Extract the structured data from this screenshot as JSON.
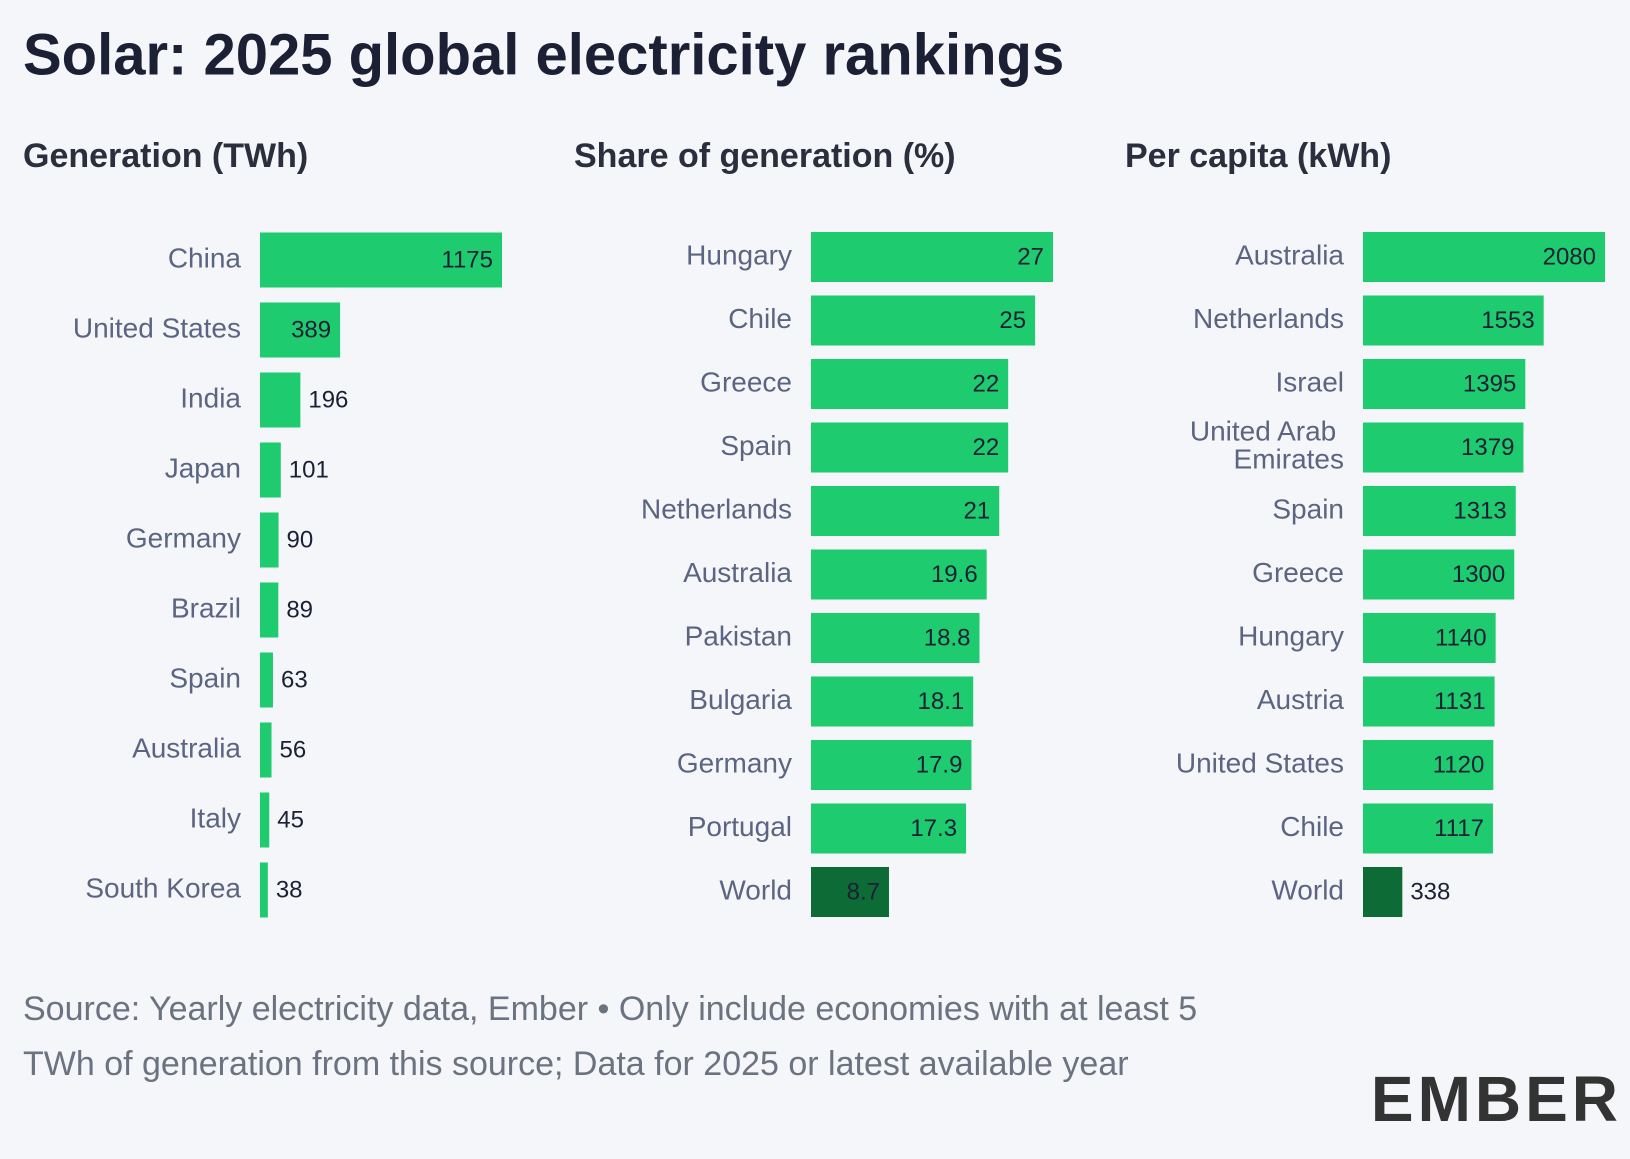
{
  "title": "Solar: 2025 global electricity rankings",
  "source": "Source: Yearly electricity data, Ember • Only include economies with at least 5 TWh of generation from this source; Data for 2025 or latest available year",
  "logo": "EMBER",
  "chart_data": [
    {
      "type": "bar",
      "orientation": "horizontal",
      "title": "Generation (TWh)",
      "categories": [
        "China",
        "United States",
        "India",
        "Japan",
        "Germany",
        "Brazil",
        "Spain",
        "Australia",
        "Italy",
        "South Korea"
      ],
      "values": [
        1175,
        389,
        196,
        101,
        90,
        89,
        63,
        56,
        45,
        38
      ],
      "colors": [
        "#1ecb6e",
        "#1ecb6e",
        "#1ecb6e",
        "#1ecb6e",
        "#1ecb6e",
        "#1ecb6e",
        "#1ecb6e",
        "#1ecb6e",
        "#1ecb6e",
        "#1ecb6e"
      ]
    },
    {
      "type": "bar",
      "orientation": "horizontal",
      "title": "Share of generation (%)",
      "categories": [
        "Hungary",
        "Chile",
        "Greece",
        "Spain",
        "Netherlands",
        "Australia",
        "Pakistan",
        "Bulgaria",
        "Germany",
        "Portugal",
        "World"
      ],
      "values": [
        27,
        25,
        22,
        22,
        21,
        19.6,
        18.8,
        18.1,
        17.9,
        17.3,
        8.7
      ],
      "colors": [
        "#1ecb6e",
        "#1ecb6e",
        "#1ecb6e",
        "#1ecb6e",
        "#1ecb6e",
        "#1ecb6e",
        "#1ecb6e",
        "#1ecb6e",
        "#1ecb6e",
        "#1ecb6e",
        "#0d6b35"
      ]
    },
    {
      "type": "bar",
      "orientation": "horizontal",
      "title": "Per capita (kWh)",
      "categories": [
        "Australia",
        "Netherlands",
        "Israel",
        "United Arab Emirates",
        "Spain",
        "Greece",
        "Hungary",
        "Austria",
        "United States",
        "Chile",
        "World"
      ],
      "values": [
        2080,
        1553,
        1395,
        1379,
        1313,
        1300,
        1140,
        1131,
        1120,
        1117,
        338
      ],
      "colors": [
        "#1ecb6e",
        "#1ecb6e",
        "#1ecb6e",
        "#1ecb6e",
        "#1ecb6e",
        "#1ecb6e",
        "#1ecb6e",
        "#1ecb6e",
        "#1ecb6e",
        "#1ecb6e",
        "#0d6b35"
      ]
    }
  ]
}
